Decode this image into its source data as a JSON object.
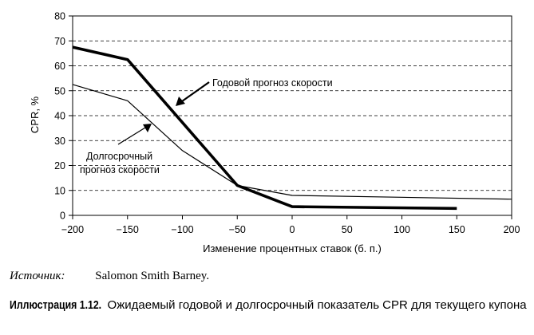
{
  "chart_data": {
    "type": "line",
    "xlabel": "Изменение процентных ставок (б. п.)",
    "ylabel": "CPR, %",
    "xlim": [
      -200,
      200
    ],
    "ylim": [
      0,
      80
    ],
    "xticks": [
      "−200",
      "−150",
      "−100",
      "−50",
      "0",
      "50",
      "100",
      "150",
      "200"
    ],
    "yticks": [
      "0",
      "10",
      "20",
      "30",
      "40",
      "50",
      "60",
      "70",
      "80"
    ],
    "grid": "horizontal dashed",
    "series": [
      {
        "name": "Годовой прогноз скорости",
        "style": "thick",
        "x": [
          -200,
          -150,
          -50,
          0,
          150
        ],
        "y": [
          67.5,
          62.5,
          12,
          3.5,
          2.8
        ]
      },
      {
        "name": "Долгосрочный прогноз скорости",
        "style": "thin",
        "x": [
          -200,
          -150,
          -100,
          -50,
          0,
          200
        ],
        "y": [
          52.5,
          46,
          26,
          12,
          8,
          6.5
        ]
      }
    ],
    "annotations": [
      {
        "text": "Годовой прогноз скорости"
      },
      {
        "line1": "Долгосрочный",
        "line2": "прогноз скорости"
      }
    ]
  },
  "source": {
    "label": "Источник:",
    "text": "Salomon Smith Barney."
  },
  "caption": {
    "label": "Иллюстрация 1.12.",
    "text": "Ожидаемый годовой и долгосрочный показатель CPR для текущего купона"
  },
  "colors": {
    "line": "#000000",
    "grid": "#000000",
    "background": "#ffffff"
  }
}
